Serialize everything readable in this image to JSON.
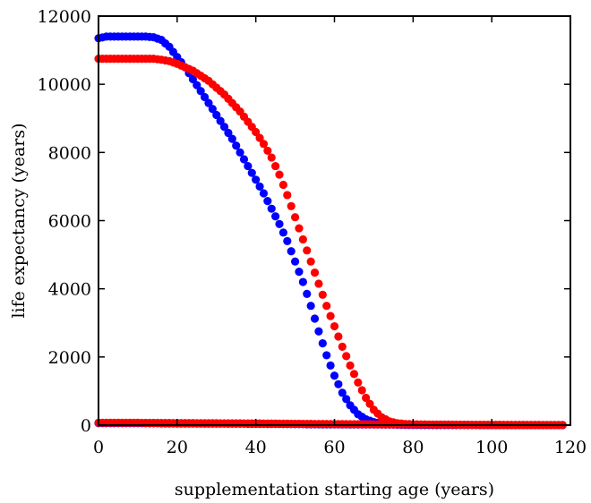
{
  "chart_data": {
    "type": "scatter",
    "title": "",
    "xlabel": "supplementation starting age (years)",
    "ylabel": "life expectancy (years)",
    "xlim": [
      0,
      120
    ],
    "ylim": [
      0,
      12000
    ],
    "x_ticks": [
      0,
      20,
      40,
      60,
      80,
      100,
      120
    ],
    "y_ticks": [
      0,
      2000,
      4000,
      6000,
      8000,
      10000,
      12000
    ],
    "grid": false,
    "legend": "none",
    "marker": "filled-circle",
    "series": [
      {
        "color": "#0000ff",
        "x": [
          0,
          2,
          4,
          6,
          8,
          10,
          12,
          14,
          16,
          18,
          20,
          22,
          24,
          26,
          28,
          30,
          32,
          34,
          36,
          38,
          40,
          42,
          44,
          46,
          48,
          50,
          52,
          54,
          56,
          58,
          60,
          62,
          64,
          66,
          68,
          70,
          72,
          74,
          76,
          78,
          80,
          85,
          90,
          95,
          100,
          105,
          110,
          115,
          118
        ],
        "y": [
          11350,
          11400,
          11400,
          11400,
          11400,
          11400,
          11400,
          11380,
          11300,
          11100,
          10800,
          10500,
          10150,
          9800,
          9450,
          9100,
          8750,
          8400,
          8000,
          7600,
          7200,
          6800,
          6350,
          5900,
          5400,
          4800,
          4200,
          3500,
          2750,
          2050,
          1450,
          950,
          580,
          320,
          170,
          90,
          45,
          25,
          15,
          10,
          5,
          3,
          2,
          2,
          1,
          1,
          1,
          1,
          1
        ]
      },
      {
        "color": "#ff0000",
        "x": [
          0,
          2,
          4,
          6,
          8,
          10,
          12,
          14,
          16,
          18,
          20,
          22,
          24,
          26,
          28,
          30,
          32,
          34,
          36,
          38,
          40,
          42,
          44,
          46,
          48,
          50,
          52,
          54,
          56,
          58,
          60,
          62,
          64,
          66,
          68,
          70,
          72,
          74,
          76,
          78,
          80,
          82,
          85,
          90,
          95,
          100,
          105,
          110,
          115,
          118
        ],
        "y": [
          10750,
          10750,
          10750,
          10750,
          10750,
          10750,
          10750,
          10750,
          10720,
          10680,
          10600,
          10500,
          10400,
          10250,
          10100,
          9900,
          9700,
          9450,
          9200,
          8900,
          8600,
          8250,
          7850,
          7350,
          6750,
          6100,
          5450,
          4800,
          4150,
          3500,
          2900,
          2300,
          1750,
          1250,
          800,
          450,
          230,
          110,
          55,
          35,
          25,
          15,
          8,
          5,
          3,
          2,
          2,
          1,
          1,
          1
        ]
      },
      {
        "color": "#0000ff",
        "x": [
          0,
          5,
          10,
          15,
          20,
          25,
          30,
          35,
          40,
          45,
          50,
          55,
          60,
          65,
          70,
          75,
          80,
          85,
          90,
          95,
          100,
          105,
          110,
          115,
          118
        ],
        "y": [
          60,
          60,
          58,
          55,
          50,
          48,
          45,
          42,
          40,
          35,
          30,
          25,
          22,
          20,
          18,
          15,
          12,
          10,
          8,
          5,
          4,
          3,
          2,
          2,
          2
        ]
      },
      {
        "color": "#ff0000",
        "x": [
          0,
          5,
          10,
          15,
          20,
          25,
          30,
          35,
          40,
          45,
          50,
          55,
          60,
          65,
          70,
          75,
          80,
          85,
          90,
          95,
          100,
          105,
          110,
          115,
          118
        ],
        "y": [
          70,
          70,
          68,
          65,
          60,
          58,
          55,
          52,
          50,
          45,
          40,
          35,
          30,
          28,
          25,
          22,
          20,
          18,
          15,
          12,
          10,
          8,
          6,
          5,
          5
        ]
      }
    ]
  }
}
